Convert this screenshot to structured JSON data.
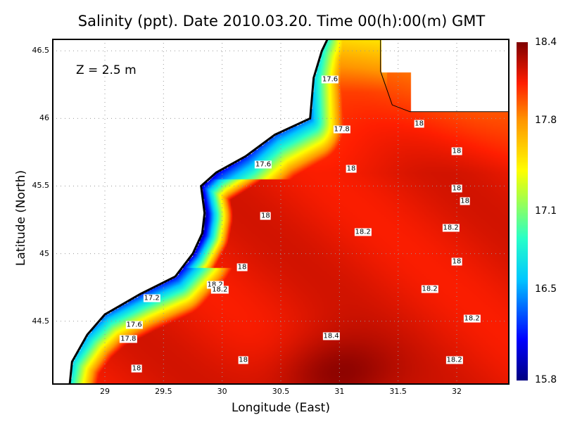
{
  "title": "Salinity (ppt). Date 2010.03.20. Time 00(h):00(m) GMT",
  "annotation": "Z  =  2.5  m",
  "chart_data": {
    "type": "heatmap",
    "title": "Salinity (ppt). Date 2010.03.20. Time 00(h):00(m) GMT",
    "xlabel": "Longitude (East)",
    "ylabel": "Latitude (North)",
    "xlim": [
      28.55,
      32.45
    ],
    "ylim": [
      44.03,
      46.59
    ],
    "xticks": [
      "29",
      "29.5",
      "30",
      "30.5",
      "31",
      "31.5",
      "32"
    ],
    "yticks": [
      "44.5",
      "45",
      "45.5",
      "46",
      "46.5"
    ],
    "grid": true,
    "colorbar": {
      "min": 15.8,
      "max": 18.4,
      "ticks": [
        "18.4",
        "17.8",
        "17.1",
        "16.5",
        "15.8"
      ],
      "colormap": "jet"
    },
    "contour_labels": [
      {
        "text": "17.6",
        "lon": 30.92,
        "lat": 46.29
      },
      {
        "text": "17.8",
        "lon": 31.02,
        "lat": 45.92
      },
      {
        "text": "17.6",
        "lon": 30.35,
        "lat": 45.66
      },
      {
        "text": "18",
        "lon": 31.1,
        "lat": 45.63
      },
      {
        "text": "18",
        "lon": 31.68,
        "lat": 45.96
      },
      {
        "text": "18",
        "lon": 32.0,
        "lat": 45.76
      },
      {
        "text": "18",
        "lon": 32.0,
        "lat": 45.48
      },
      {
        "text": "18",
        "lon": 32.07,
        "lat": 45.39
      },
      {
        "text": "18",
        "lon": 30.37,
        "lat": 45.28
      },
      {
        "text": "18.2",
        "lon": 31.2,
        "lat": 45.16
      },
      {
        "text": "18.2",
        "lon": 31.95,
        "lat": 45.19
      },
      {
        "text": "18",
        "lon": 32.0,
        "lat": 44.94
      },
      {
        "text": "18",
        "lon": 30.17,
        "lat": 44.9
      },
      {
        "text": "18.2",
        "lon": 29.94,
        "lat": 44.77
      },
      {
        "text": "18.2",
        "lon": 29.98,
        "lat": 44.73
      },
      {
        "text": "18.2",
        "lon": 31.77,
        "lat": 44.74
      },
      {
        "text": "17.2",
        "lon": 29.4,
        "lat": 44.67
      },
      {
        "text": "18.2",
        "lon": 32.13,
        "lat": 44.52
      },
      {
        "text": "17.6",
        "lon": 29.25,
        "lat": 44.47
      },
      {
        "text": "18.4",
        "lon": 30.93,
        "lat": 44.39
      },
      {
        "text": "17.8",
        "lon": 29.2,
        "lat": 44.37
      },
      {
        "text": "18",
        "lon": 30.18,
        "lat": 44.21
      },
      {
        "text": "18.2",
        "lon": 31.98,
        "lat": 44.21
      },
      {
        "text": "18",
        "lon": 29.27,
        "lat": 44.15
      }
    ]
  },
  "colors": {
    "land": "#ffffff",
    "coast": "#000000",
    "grid": "#999999"
  }
}
